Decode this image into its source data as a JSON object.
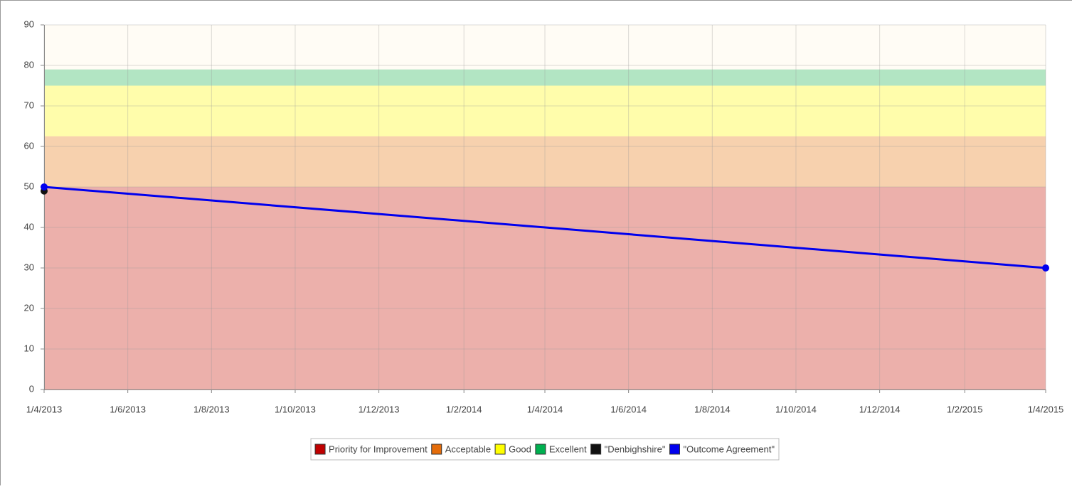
{
  "chart_data": {
    "type": "line",
    "xlim": [
      "1/4/2013",
      "1/4/2015"
    ],
    "xticks": [
      "1/4/2013",
      "1/6/2013",
      "1/8/2013",
      "1/10/2013",
      "1/12/2013",
      "1/2/2014",
      "1/4/2014",
      "1/6/2014",
      "1/8/2014",
      "1/10/2014",
      "1/12/2014",
      "1/2/2015",
      "1/4/2015"
    ],
    "ylim": [
      0,
      90
    ],
    "yticks": [
      0,
      10,
      20,
      30,
      40,
      50,
      60,
      70,
      80,
      90
    ],
    "grid": true,
    "background": "#fffcf5",
    "bands": [
      {
        "name": "Priority for Improvement",
        "color": "#c00000",
        "value": 50
      },
      {
        "name": "Acceptable",
        "color": "#e46c0a",
        "value": 12.5
      },
      {
        "name": "Good",
        "color": "#ffff00",
        "value": 12.5
      },
      {
        "name": "Excellent",
        "color": "#00b050",
        "value": 4
      }
    ],
    "series": [
      {
        "name": "\"Denbighshire\"",
        "color": "#111111",
        "x": [
          "1/4/2013"
        ],
        "values": [
          49
        ]
      },
      {
        "name": "\"Outcome Agreement\"",
        "color": "#0000ee",
        "x": [
          "1/4/2013",
          "1/4/2015"
        ],
        "values": [
          50,
          30
        ]
      }
    ],
    "legend": "bottom"
  }
}
